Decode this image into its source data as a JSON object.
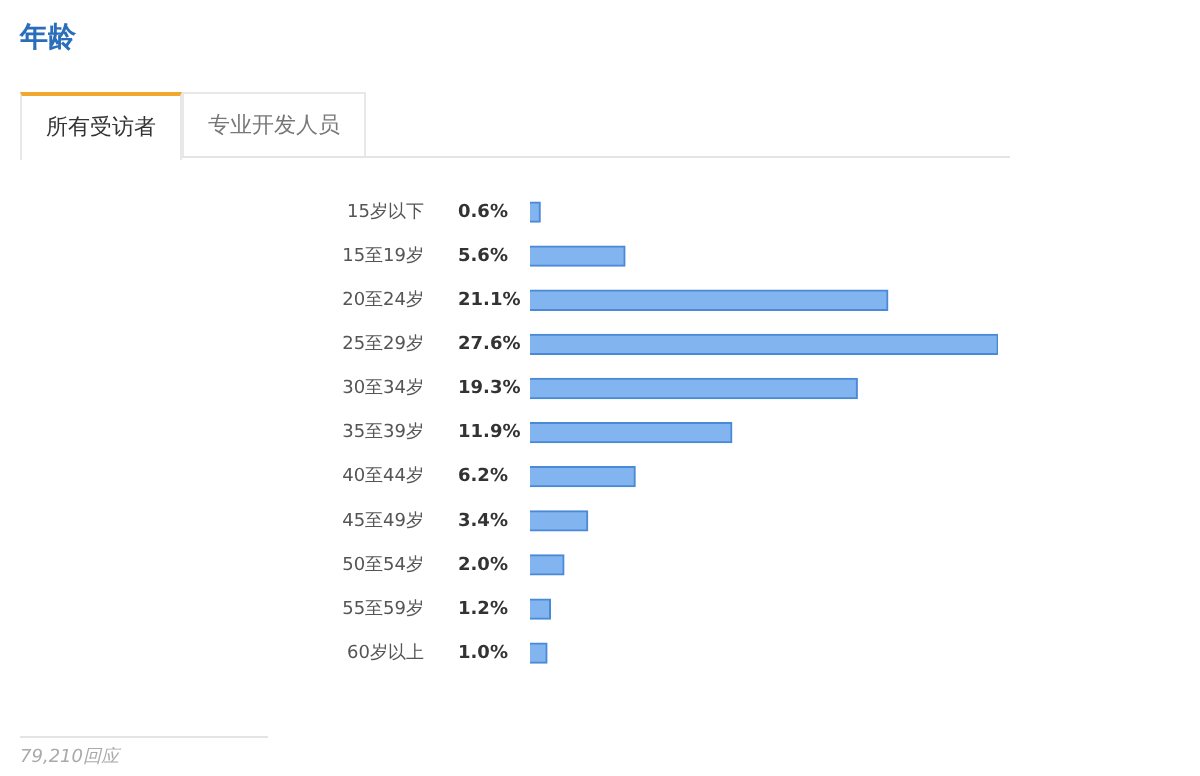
{
  "chart_data": {
    "type": "bar",
    "orientation": "horizontal",
    "title": "年龄",
    "categories": [
      "15岁以下",
      "15至19岁",
      "20至24岁",
      "25至29岁",
      "30至34岁",
      "35至39岁",
      "40至44岁",
      "45至49岁",
      "50至54岁",
      "55至59岁",
      "60岁以上"
    ],
    "values": [
      0.6,
      5.6,
      21.1,
      27.6,
      19.3,
      11.9,
      6.2,
      3.4,
      2.0,
      1.2,
      1.0
    ],
    "value_labels": [
      "0.6%",
      "5.6%",
      "21.1%",
      "27.6%",
      "19.3%",
      "11.9%",
      "6.2%",
      "3.4%",
      "2.0%",
      "1.2%",
      "1.0%"
    ],
    "color": "#82b4f0",
    "annotations": [
      "所有受访者",
      "专业开发人员",
      "79,210回应"
    ],
    "legend": false
  }
}
